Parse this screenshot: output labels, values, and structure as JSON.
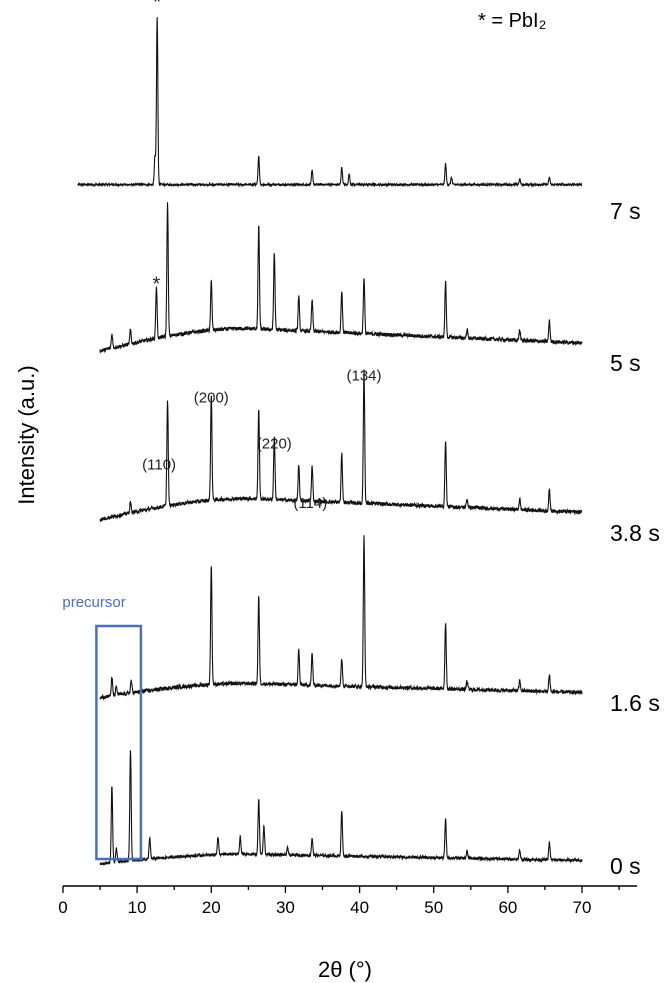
{
  "chart_data": {
    "type": "line",
    "xlabel": "2θ (°)",
    "ylabel": "Intensity (a.u.)",
    "xlim": [
      0,
      70
    ],
    "xticks": [
      0,
      10,
      20,
      30,
      40,
      50,
      60,
      70
    ],
    "grid": false,
    "legend_note": "* = PbI₂",
    "series": [
      {
        "name": "7 s",
        "baseline": 0.2,
        "tilt": 0.0,
        "noise": 0.5,
        "peaks": [
          [
            12.7,
            24
          ],
          [
            12.4,
            4
          ],
          [
            26.4,
            4
          ],
          [
            33.6,
            2
          ],
          [
            37.6,
            2.5
          ],
          [
            38.6,
            1.5
          ],
          [
            51.6,
            3
          ],
          [
            52.4,
            1
          ],
          [
            61.6,
            0.8
          ],
          [
            65.6,
            1
          ]
        ]
      },
      {
        "name": "5 s",
        "baseline": 0.3,
        "tilt": 3.2,
        "noise": 0.9,
        "peaks": [
          [
            6.6,
            2
          ],
          [
            9.1,
            2
          ],
          [
            12.6,
            7.5
          ],
          [
            14.1,
            19
          ],
          [
            20.0,
            7
          ],
          [
            26.4,
            15
          ],
          [
            28.5,
            11
          ],
          [
            31.8,
            5
          ],
          [
            33.6,
            4.5
          ],
          [
            37.6,
            6
          ],
          [
            40.6,
            8
          ],
          [
            51.6,
            8
          ],
          [
            54.5,
            1.2
          ],
          [
            61.6,
            1.5
          ],
          [
            65.6,
            3
          ]
        ]
      },
      {
        "name": "3.8 s",
        "baseline": 0.5,
        "tilt": 3.0,
        "noise": 0.9,
        "peaks": [
          [
            9.1,
            1.5
          ],
          [
            14.1,
            15
          ],
          [
            20.0,
            15
          ],
          [
            26.4,
            13
          ],
          [
            28.5,
            9
          ],
          [
            31.8,
            5
          ],
          [
            33.6,
            5
          ],
          [
            37.6,
            7
          ],
          [
            40.6,
            19
          ],
          [
            51.6,
            9.5
          ],
          [
            54.5,
            1.2
          ],
          [
            61.6,
            1.5
          ],
          [
            65.6,
            3
          ]
        ]
      },
      {
        "name": "1.6 s",
        "baseline": 0.8,
        "tilt": 2.0,
        "noise": 0.9,
        "peaks": [
          [
            6.6,
            2.5
          ],
          [
            7.2,
            1.2
          ],
          [
            9.2,
            1.8
          ],
          [
            20.0,
            17
          ],
          [
            26.4,
            12.5
          ],
          [
            31.8,
            5
          ],
          [
            33.6,
            4.5
          ],
          [
            37.6,
            4
          ],
          [
            40.6,
            21.5
          ],
          [
            51.6,
            9.5
          ],
          [
            54.5,
            1.2
          ],
          [
            61.6,
            1.5
          ],
          [
            65.6,
            2.5
          ]
        ]
      },
      {
        "name": "0 s",
        "baseline": 0.3,
        "tilt": 1.4,
        "noise": 0.7,
        "peaks": [
          [
            6.6,
            11
          ],
          [
            7.2,
            2
          ],
          [
            9.1,
            16
          ],
          [
            11.7,
            3
          ],
          [
            20.9,
            2.5
          ],
          [
            23.9,
            2.5
          ],
          [
            26.4,
            8
          ],
          [
            27.1,
            4
          ],
          [
            30.3,
            1
          ],
          [
            33.6,
            2.5
          ],
          [
            37.6,
            6.5
          ],
          [
            51.6,
            5.5
          ],
          [
            54.5,
            1
          ],
          [
            61.6,
            1.3
          ],
          [
            65.6,
            2.5
          ]
        ]
      }
    ],
    "annotations": [
      {
        "text": "*",
        "x": 12.7,
        "series": "7 s"
      },
      {
        "text": "*",
        "x": 12.6,
        "series": "5 s"
      },
      {
        "text": "(110)",
        "x": 13.5,
        "series": "3.8 s"
      },
      {
        "text": "(200)",
        "x": 20.0,
        "series": "3.8 s"
      },
      {
        "text": "(220)",
        "x": 28.5,
        "series": "3.8 s"
      },
      {
        "text": "(114)",
        "x": 32.0,
        "series": "3.8 s"
      },
      {
        "text": "(134)",
        "x": 40.6,
        "series": "3.8 s"
      }
    ],
    "highlight": {
      "text": "precursor",
      "x_range": [
        4.5,
        10.5
      ],
      "color": "#4a6fbf"
    }
  }
}
